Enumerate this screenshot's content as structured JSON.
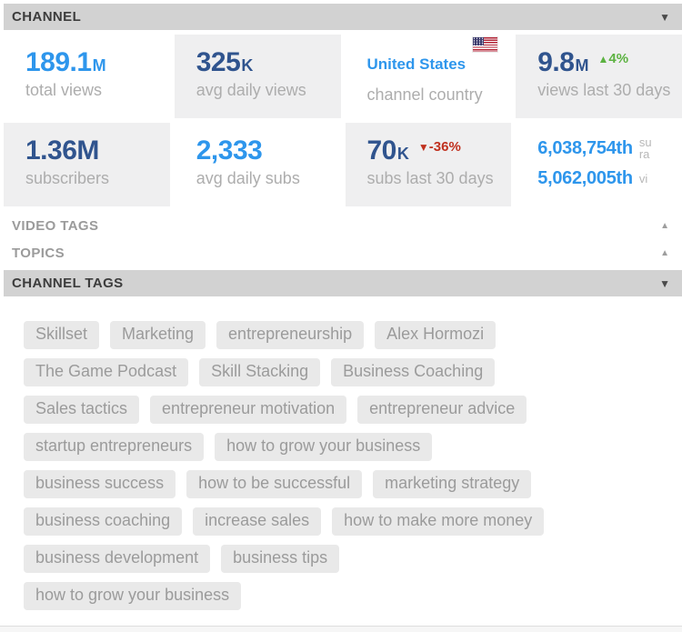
{
  "header": {
    "title": "CHANNEL",
    "collapse_icon": "▼"
  },
  "stats": {
    "total_views": {
      "value": "189.1",
      "suffix": "M",
      "label": "total views"
    },
    "avg_daily_views": {
      "value": "325",
      "suffix": "K",
      "label": "avg daily views"
    },
    "channel_country": {
      "value": "United States",
      "label": "channel country",
      "flag_icon": "us-flag"
    },
    "views_last_30_days": {
      "value": "9.8",
      "suffix": "M",
      "delta_icon": "▲",
      "delta": "4%",
      "label": "views last 30 days"
    },
    "subscribers": {
      "value": "1.36M",
      "suffix": "",
      "label": "subscribers"
    },
    "avg_daily_subs": {
      "value": "2,333",
      "suffix": "",
      "label": "avg daily subs"
    },
    "subs_last_30_days": {
      "value": "70",
      "suffix": "K",
      "delta_icon": "▼",
      "delta": "-36%",
      "label": "subs last 30 days"
    },
    "ranks": {
      "rank1": "6,038,754th",
      "rank1_note_line1": "su",
      "rank1_note_line2": "ra",
      "rank2": "5,062,005th",
      "rank2_note": "vi"
    }
  },
  "sections": {
    "video_tags": {
      "label": "VIDEO TAGS",
      "collapse_icon": "▲"
    },
    "topics": {
      "label": "TOPICS",
      "collapse_icon": "▲"
    },
    "channel_tags": {
      "label": "CHANNEL TAGS",
      "collapse_icon": "▼"
    }
  },
  "channel_tags": {
    "rows": [
      [
        "Skillset",
        "Marketing",
        "entrepreneurship",
        "Alex Hormozi"
      ],
      [
        "The Game Podcast",
        "Skill Stacking",
        "Business Coaching"
      ],
      [
        "Sales tactics",
        "entrepreneur motivation",
        "entrepreneur advice"
      ],
      [
        "startup entrepreneurs",
        "how to grow your business"
      ],
      [
        "business success",
        "how to be successful",
        "marketing strategy"
      ],
      [
        "business coaching",
        "increase sales",
        "how to make more money"
      ],
      [
        "business development",
        "business tips"
      ],
      [
        "how to grow your business"
      ]
    ]
  },
  "colors": {
    "accent_blue": "#2e96ec",
    "accent_navy": "#30548e",
    "delta_up_green": "#5cb241",
    "delta_down_red": "#c0311f",
    "bar_gray": "#d2d2d2",
    "cell_gray": "#efeff0",
    "chip_gray": "#e9e9e9"
  }
}
